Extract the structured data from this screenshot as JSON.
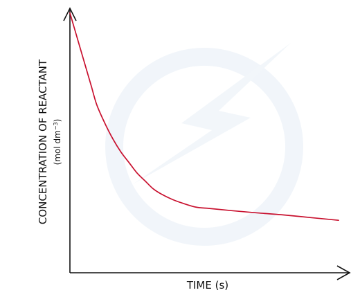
{
  "chart_data": {
    "type": "line",
    "xlabel": "TIME (s)",
    "ylabel": "CONCENTRATION OF REACTANT",
    "ylabel_unit_prefix": "(mol dm",
    "ylabel_unit_exponent": "−3",
    "ylabel_unit_suffix": ")",
    "x_ticks": false,
    "y_ticks": false,
    "grid": false,
    "xlim": [
      0,
      100
    ],
    "ylim": [
      0,
      100
    ],
    "series": [
      {
        "color": "#c8102e",
        "points": [
          [
            0,
            99
          ],
          [
            2,
            92
          ],
          [
            4,
            85
          ],
          [
            6,
            78
          ],
          [
            8,
            71
          ],
          [
            10,
            64
          ],
          [
            13,
            57
          ],
          [
            16,
            51
          ],
          [
            19,
            46
          ],
          [
            22,
            42
          ],
          [
            25,
            38
          ],
          [
            28,
            35
          ],
          [
            31,
            32
          ],
          [
            34,
            30
          ],
          [
            38,
            28
          ],
          [
            42,
            26.5
          ],
          [
            47,
            25
          ],
          [
            52,
            24.5
          ],
          [
            60,
            23.7
          ],
          [
            70,
            22.8
          ],
          [
            80,
            22
          ],
          [
            90,
            21
          ],
          [
            100,
            20
          ]
        ]
      }
    ]
  },
  "colors": {
    "axis": "#111111",
    "curve": "#c8102e",
    "watermark": "#dde8f2"
  }
}
